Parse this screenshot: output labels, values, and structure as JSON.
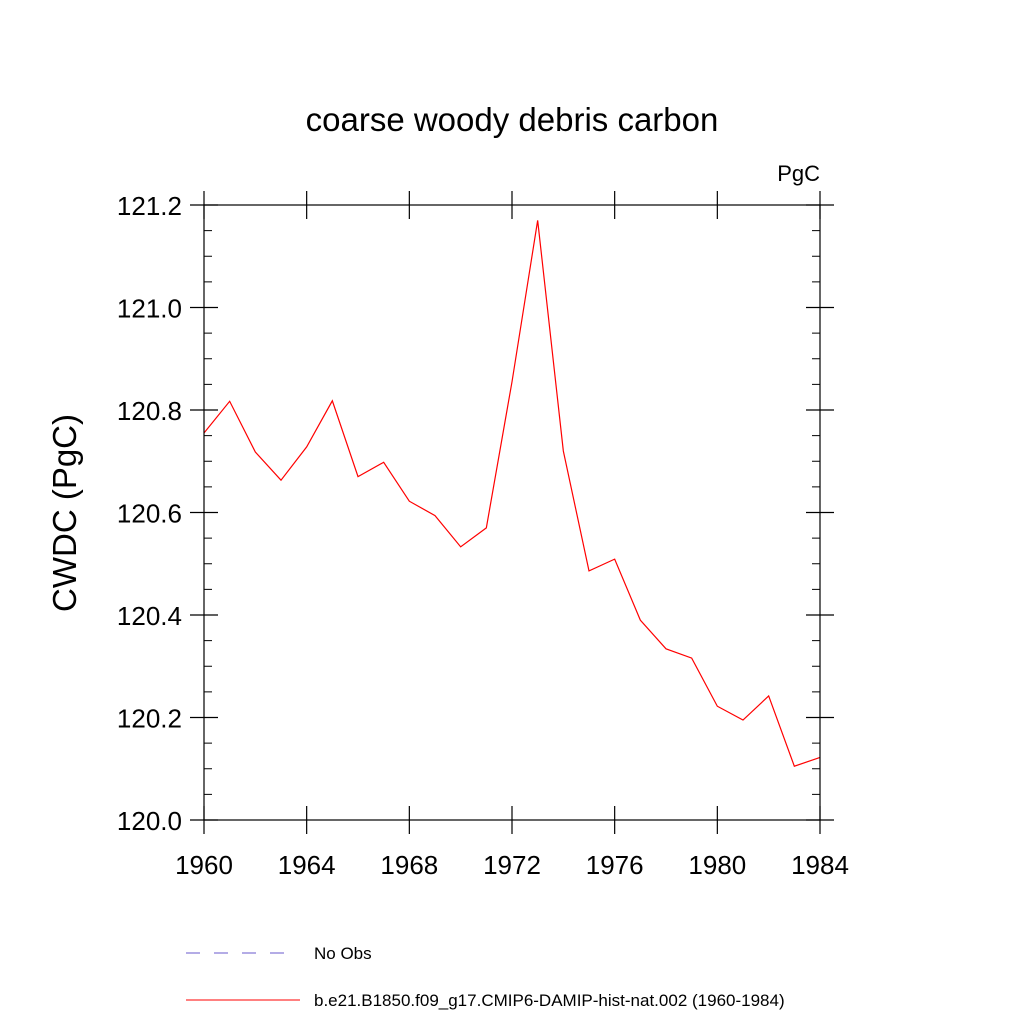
{
  "chart_data": {
    "type": "line",
    "title": "coarse woody debris carbon",
    "units_label": "PgC",
    "ylabel": "CWDC  (PgC)",
    "xlabel": "",
    "xlim": [
      1960,
      1984
    ],
    "ylim": [
      120.0,
      121.2
    ],
    "x_ticks": [
      1960,
      1964,
      1968,
      1972,
      1976,
      1980,
      1984
    ],
    "x_tick_labels": [
      "1960",
      "1964",
      "1968",
      "1972",
      "1976",
      "1980",
      "1984"
    ],
    "y_ticks": [
      120.0,
      120.2,
      120.4,
      120.6,
      120.8,
      121.0,
      121.2
    ],
    "y_tick_labels": [
      "120.0",
      "120.2",
      "120.4",
      "120.6",
      "120.8",
      "121.0",
      "121.2"
    ],
    "grid": false,
    "legend_position": "bottom",
    "series": [
      {
        "name": "b.e21.B1850.f09_g17.CMIP6-DAMIP-hist-nat.002 (1960-1984)",
        "color": "#ff0000",
        "style": "solid",
        "x": [
          1960,
          1961,
          1962,
          1963,
          1964,
          1965,
          1966,
          1967,
          1968,
          1969,
          1970,
          1971,
          1972,
          1973,
          1974,
          1975,
          1976,
          1977,
          1978,
          1979,
          1980,
          1981,
          1982,
          1983,
          1984
        ],
        "values": [
          120.755,
          120.817,
          120.718,
          120.663,
          120.728,
          120.818,
          120.67,
          120.698,
          120.622,
          120.594,
          120.533,
          120.57,
          120.855,
          121.17,
          120.72,
          120.486,
          120.509,
          120.39,
          120.334,
          120.316,
          120.222,
          120.195,
          120.242,
          120.105,
          120.122
        ]
      }
    ],
    "legend": [
      {
        "label": "No Obs",
        "color": "#6a5acd",
        "style": "dashed"
      },
      {
        "label": "b.e21.B1850.f09_g17.CMIP6-DAMIP-hist-nat.002 (1960-1984)",
        "color": "#ff0000",
        "style": "solid"
      }
    ]
  }
}
